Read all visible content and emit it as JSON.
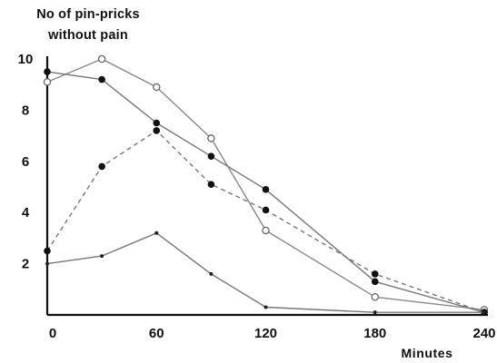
{
  "chart_data": {
    "type": "line",
    "title": "",
    "ylabel_lines": [
      "No of pin-pricks",
      "without pain"
    ],
    "xlabel": "Minutes",
    "xlim": [
      0,
      240
    ],
    "ylim": [
      0,
      10
    ],
    "x_ticks": [
      0,
      60,
      120,
      180,
      240
    ],
    "y_ticks": [
      2,
      4,
      6,
      8,
      10
    ],
    "grid": false,
    "x_tick_labels": [
      "0",
      "60",
      "120",
      "180",
      "240"
    ],
    "y_tick_labels": [
      "2",
      "4",
      "6",
      "8",
      "10"
    ],
    "series": [
      {
        "marker": "open-circle",
        "line": "solid",
        "color": "#888888",
        "x": [
          0,
          30,
          60,
          90,
          120,
          180,
          240
        ],
        "y": [
          9.1,
          10.0,
          8.9,
          6.9,
          3.3,
          0.7,
          0.2
        ]
      },
      {
        "marker": "filled-circle",
        "line": "solid",
        "color": "#777777",
        "x": [
          0,
          30,
          60,
          90,
          120,
          180,
          240
        ],
        "y": [
          9.5,
          9.2,
          7.5,
          6.2,
          4.9,
          1.3,
          0.1
        ]
      },
      {
        "marker": "filled-circle",
        "line": "dashed",
        "color": "#777777",
        "x": [
          0,
          30,
          60,
          90,
          120,
          180,
          240
        ],
        "y": [
          2.5,
          5.8,
          7.2,
          5.1,
          4.1,
          1.6,
          0.1
        ]
      },
      {
        "marker": "small-dot",
        "line": "solid",
        "color": "#777777",
        "x": [
          0,
          30,
          60,
          90,
          120,
          180,
          240
        ],
        "y": [
          2.0,
          2.3,
          3.2,
          1.6,
          0.3,
          0.1,
          0.1
        ]
      }
    ]
  }
}
